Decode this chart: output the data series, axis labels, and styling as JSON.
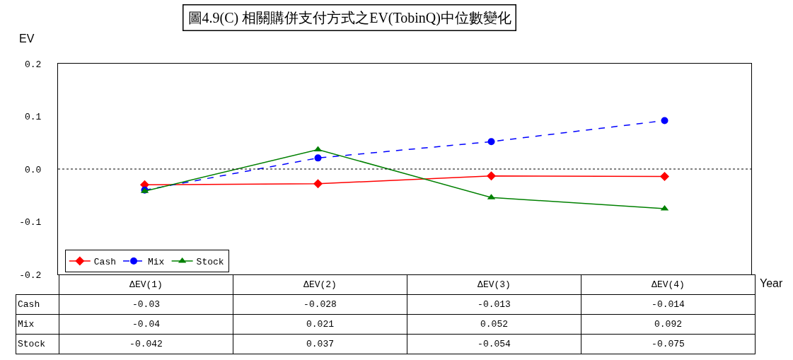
{
  "chart_data": {
    "type": "line",
    "title": "圖4.9(C) 相關購併支付方式之EV(TobinQ)中位數變化",
    "ylabel": "EV",
    "xlabel": "Year",
    "categories": [
      "ΔEV(1)",
      "ΔEV(2)",
      "ΔEV(3)",
      "ΔEV(4)"
    ],
    "series": [
      {
        "name": "Cash",
        "color": "#ff0000",
        "values": [
          -0.03,
          -0.028,
          -0.013,
          -0.014
        ],
        "marker": "diamond",
        "line_style": "solid"
      },
      {
        "name": "Mix",
        "color": "#0000ff",
        "values": [
          -0.04,
          0.021,
          0.052,
          0.092
        ],
        "marker": "circle",
        "line_style": "dashed"
      },
      {
        "name": "Stock",
        "color": "#008000",
        "values": [
          -0.042,
          0.037,
          -0.054,
          -0.075
        ],
        "marker": "triangle",
        "line_style": "solid"
      }
    ],
    "ylim": [
      -0.2,
      0.2
    ],
    "yticks": [
      -0.2,
      -0.1,
      {
        "value": 0,
        "label": "0.0"
      },
      0.1,
      0.2
    ],
    "ref_lines": [
      {
        "axis": "y",
        "value": 0,
        "line_style": "dotted",
        "color": "#000000"
      }
    ],
    "grid": false,
    "legend": "bottom left",
    "data_labels": true
  }
}
